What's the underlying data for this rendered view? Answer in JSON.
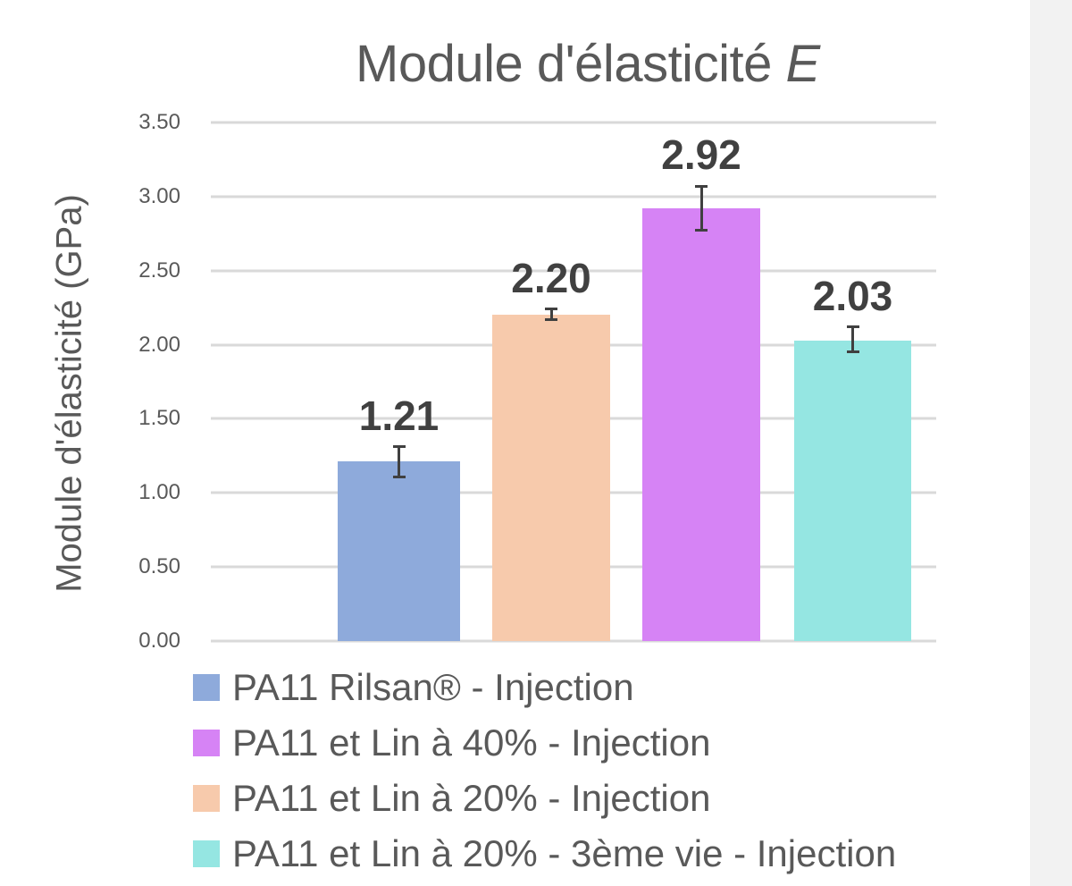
{
  "chart_data": {
    "type": "bar",
    "title": "Module d'élasticité",
    "title_italic_suffix": "E",
    "xlabel": "",
    "ylabel": "Module d'élasticité (GPa)",
    "ylim": [
      0,
      3.5
    ],
    "yticks": [
      "0.00",
      "0.50",
      "1.00",
      "1.50",
      "2.00",
      "2.50",
      "3.00",
      "3.50"
    ],
    "grid": true,
    "legend_position": "bottom",
    "categories": [
      "PA11 Rilsan® - Injection",
      "PA11 et Lin à 20% - Injection",
      "PA11 et Lin à 40% - Injection",
      "PA11 et Lin à 20% - 3ème vie - Injection"
    ],
    "values": [
      1.21,
      2.2,
      2.92,
      2.03
    ],
    "value_labels": [
      "1.21",
      "2.20",
      "2.92",
      "2.03"
    ],
    "error_bars": [
      {
        "low": 1.11,
        "high": 1.31
      },
      {
        "low": 2.17,
        "high": 2.24
      },
      {
        "low": 2.77,
        "high": 3.07
      },
      {
        "low": 1.95,
        "high": 2.12
      }
    ],
    "colors": [
      "#8eaadb",
      "#f7caac",
      "#d683f5",
      "#95e6e2"
    ]
  },
  "legend": [
    {
      "label": "PA11 Rilsan® - Injection",
      "color": "#8eaadb"
    },
    {
      "label": "PA11 et Lin à 40% - Injection",
      "color": "#d683f5"
    },
    {
      "label": "PA11 et Lin à 20% - Injection",
      "color": "#f7caac"
    },
    {
      "label": "PA11 et Lin à 20% - 3ème vie - Injection",
      "color": "#95e6e2"
    }
  ]
}
